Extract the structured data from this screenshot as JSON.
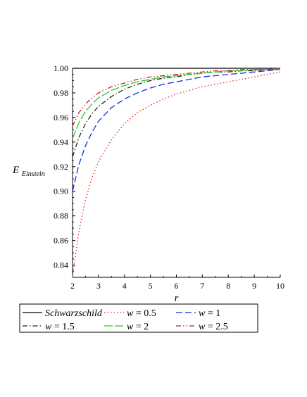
{
  "chart_data": {
    "type": "line",
    "xlabel": "r",
    "ylabel": "E",
    "ylabel_subscript": "Einstein",
    "xlim": [
      2,
      10
    ],
    "ylim": [
      0.83,
      1.0
    ],
    "x_ticks": [
      "2",
      "3",
      "4",
      "5",
      "6",
      "7",
      "8",
      "9",
      "10"
    ],
    "y_ticks": [
      "0.84",
      "0.86",
      "0.88",
      "0.90",
      "0.92",
      "0.94",
      "0.96",
      "0.98",
      "1.00"
    ],
    "grid": false,
    "legend_position": "bottom",
    "x": [
      2,
      2.25,
      2.5,
      2.75,
      3,
      3.5,
      4,
      4.5,
      5,
      5.5,
      6,
      6.5,
      7,
      7.5,
      8,
      8.5,
      9,
      9.5,
      10
    ],
    "series": [
      {
        "name": "Schwarzschild",
        "color": "#000000",
        "dash": "solid",
        "values": [
          1,
          1,
          1,
          1,
          1,
          1,
          1,
          1,
          1,
          1,
          1,
          1,
          1,
          1,
          1,
          1,
          1,
          1,
          1
        ]
      },
      {
        "name": "w = 0.5",
        "color": "#e8261e",
        "dash": "dotted",
        "values": [
          0.831,
          0.868,
          0.893,
          0.911,
          0.924,
          0.942,
          0.955,
          0.964,
          0.97,
          0.975,
          0.979,
          0.982,
          0.985,
          0.987,
          0.989,
          0.991,
          0.993,
          0.995,
          0.997
        ]
      },
      {
        "name": "w = 1",
        "color": "#1330d8",
        "dash": "dash",
        "values": [
          0.9,
          0.922,
          0.937,
          0.948,
          0.957,
          0.968,
          0.975,
          0.98,
          0.984,
          0.987,
          0.989,
          0.991,
          0.993,
          0.994,
          0.995,
          0.996,
          0.997,
          0.998,
          0.999
        ]
      },
      {
        "name": "w = 1.5",
        "color": "#222222",
        "dash": "dashdot",
        "values": [
          0.928,
          0.944,
          0.955,
          0.963,
          0.969,
          0.977,
          0.983,
          0.987,
          0.99,
          0.992,
          0.993,
          0.995,
          0.996,
          0.997,
          0.997,
          0.998,
          0.998,
          0.999,
          0.999
        ]
      },
      {
        "name": "w = 2",
        "color": "#22cc22",
        "dash": "longdash",
        "values": [
          0.943,
          0.956,
          0.965,
          0.971,
          0.976,
          0.982,
          0.986,
          0.989,
          0.991,
          0.993,
          0.994,
          0.995,
          0.996,
          0.997,
          0.998,
          0.998,
          0.999,
          0.999,
          0.999
        ]
      },
      {
        "name": "w = 2.5",
        "color": "#d02020",
        "dash": "dashdotdot",
        "values": [
          0.953,
          0.964,
          0.971,
          0.976,
          0.98,
          0.985,
          0.988,
          0.991,
          0.993,
          0.994,
          0.995,
          0.996,
          0.997,
          0.998,
          0.998,
          0.999,
          0.999,
          0.999,
          1.0
        ]
      }
    ],
    "legend": [
      [
        {
          "name": "Schwarzschild",
          "italic": true
        },
        {
          "w": "w",
          "val": " = 0.5"
        },
        {
          "w": "w",
          "val": " = 1"
        }
      ],
      [
        {
          "w": "w",
          "val": " = 1.5"
        },
        {
          "w": "w",
          "val": " = 2"
        },
        {
          "w": "w",
          "val": " = 2.5"
        }
      ]
    ]
  }
}
